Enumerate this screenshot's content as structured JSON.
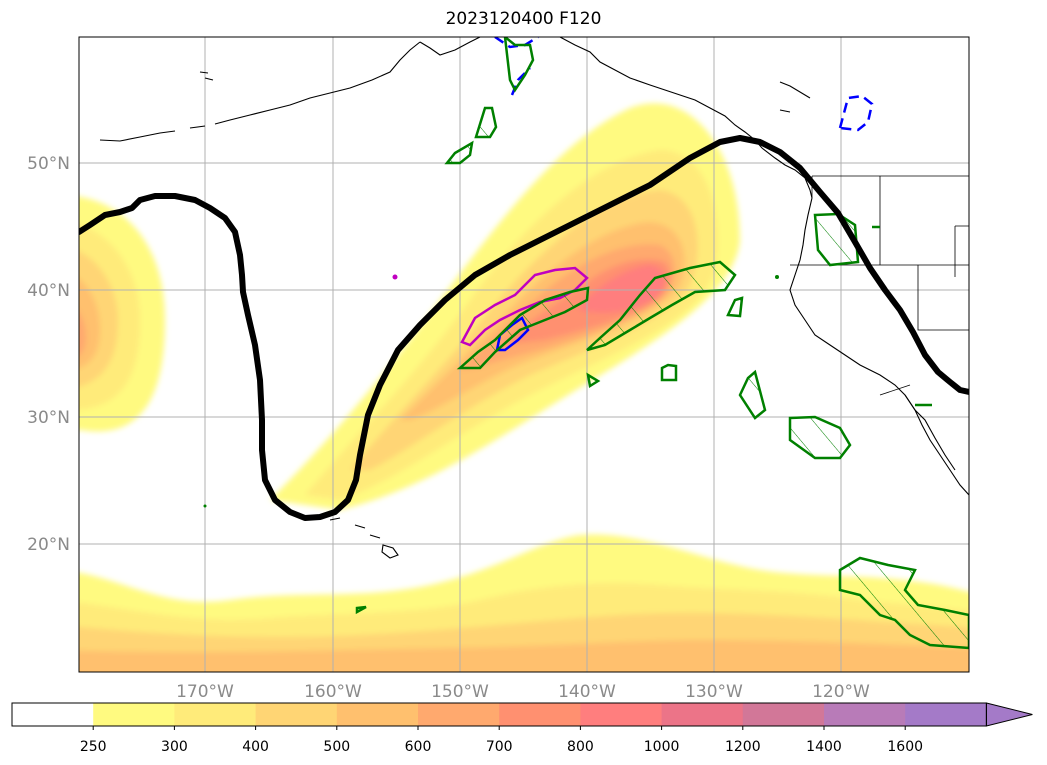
{
  "chart_data": {
    "type": "map-contour",
    "title": "2023120400 F120",
    "map_extent": {
      "lon": [
        -180,
        -110
      ],
      "lat": [
        10,
        60
      ]
    },
    "gridlines": {
      "lat_labels": [
        "50°N",
        "40°N",
        "30°N",
        "20°N"
      ],
      "lat_values": [
        50,
        40,
        30,
        20
      ],
      "lon_labels": [
        "170°W",
        "160°W",
        "150°W",
        "140°W",
        "130°W",
        "120°W"
      ],
      "lon_values": [
        -170,
        -160,
        -150,
        -140,
        -130,
        -120
      ]
    },
    "colorbar": {
      "extend": "max",
      "ticks": [
        "250",
        "300",
        "400",
        "500",
        "600",
        "700",
        "800",
        "1000",
        "1200",
        "1400",
        "1600"
      ],
      "colors": [
        "#ffffff",
        "#fffa80",
        "#ffeb7a",
        "#ffd574",
        "#ffc06e",
        "#ffa96e",
        "#ff9070",
        "#ff7e7e",
        "#ec7488",
        "#d27798",
        "#b87bb8",
        "#a47ac8"
      ]
    },
    "contour_colors": {
      "black_line": "#000000",
      "green": "#008000",
      "blue": "#0000ff",
      "magenta": "#c000c0"
    }
  }
}
